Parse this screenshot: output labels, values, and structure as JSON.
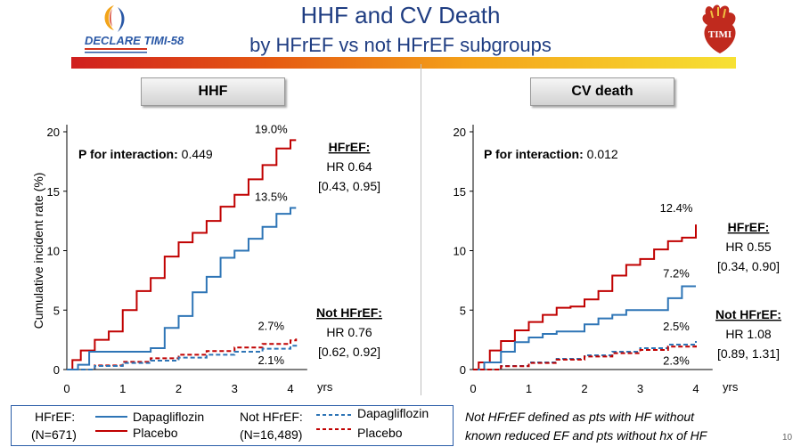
{
  "header": {
    "title_line1": "HHF and CV Death",
    "title_line2": "by HFrEF vs not HFrEF subgroups",
    "logo_left": "DECLARE TIMI-58",
    "logo_right": "TIMI"
  },
  "page_number": "10",
  "legend": {
    "group1_label": "HFrEF:",
    "group1_n": "(N=671)",
    "group2_label": "Not HFrEF:",
    "group2_n": "(N=16,489)",
    "dapa": "Dapagliflozin",
    "placebo": "Placebo"
  },
  "footnote_line1": "Not HFrEF defined as pts with HF without",
  "footnote_line2": "known reduced EF and pts without hx of  HF",
  "colors": {
    "placebo": "#c00000",
    "dapagliflozin": "#2e75b6",
    "title": "#1f3d82"
  },
  "chart_data": [
    {
      "type": "line",
      "title": "HHF",
      "ylabel": "Cumulative incident rate (%)",
      "xlabel": "yrs",
      "xlim": [
        0,
        4.3
      ],
      "ylim": [
        0,
        20
      ],
      "xticks": [
        0,
        1,
        2,
        3,
        4
      ],
      "yticks": [
        0,
        5,
        10,
        15,
        20
      ],
      "p_interaction_label": "P for interaction:",
      "p_interaction_value": "0.449",
      "hfref_label": "HFrEF:",
      "hfref_hr": "HR 0.64",
      "hfref_ci": "[0.43, 0.95]",
      "nothfref_label": "Not HFrEF:",
      "nothfref_hr": "HR 0.76",
      "nothfref_ci": "[0.62, 0.92]",
      "series": [
        {
          "group": "HFrEF",
          "arm": "placebo",
          "end_label": "19.0%",
          "x": [
            0,
            0.1,
            0.25,
            0.5,
            0.75,
            1.0,
            1.25,
            1.5,
            1.75,
            2.0,
            2.25,
            2.5,
            2.75,
            3.0,
            3.25,
            3.5,
            3.75,
            4.0,
            4.1
          ],
          "y": [
            0,
            0.8,
            1.6,
            2.5,
            3.2,
            5.0,
            6.6,
            7.7,
            9.5,
            10.7,
            11.5,
            12.5,
            13.7,
            14.7,
            16.0,
            17.2,
            18.6,
            19.3,
            19.3
          ]
        },
        {
          "group": "HFrEF",
          "arm": "dapagliflozin",
          "end_label": "13.5%",
          "x": [
            0,
            0.2,
            0.4,
            0.6,
            0.9,
            1.2,
            1.5,
            1.75,
            2.0,
            2.25,
            2.5,
            2.75,
            3.0,
            3.25,
            3.5,
            3.75,
            4.0,
            4.1
          ],
          "y": [
            0,
            0.4,
            1.5,
            1.5,
            1.5,
            1.5,
            1.8,
            3.5,
            4.5,
            6.5,
            7.8,
            9.4,
            10.0,
            11.0,
            12.0,
            13.1,
            13.6,
            13.6
          ]
        },
        {
          "group": "Not HFrEF",
          "arm": "placebo",
          "end_label": "2.7%",
          "x": [
            0,
            0.5,
            1.0,
            1.5,
            2.0,
            2.5,
            3.0,
            3.5,
            4.0,
            4.1
          ],
          "y": [
            0,
            0.35,
            0.65,
            0.95,
            1.25,
            1.55,
            1.85,
            2.15,
            2.45,
            2.6
          ]
        },
        {
          "group": "Not HFrEF",
          "arm": "dapagliflozin",
          "end_label": "2.1%",
          "x": [
            0,
            0.5,
            1.0,
            1.5,
            2.0,
            2.5,
            3.0,
            3.5,
            4.0,
            4.1
          ],
          "y": [
            0,
            0.3,
            0.55,
            0.75,
            1.0,
            1.25,
            1.5,
            1.75,
            2.0,
            2.1
          ]
        }
      ]
    },
    {
      "type": "line",
      "title": "CV death",
      "ylabel": "",
      "xlabel": "yrs",
      "xlim": [
        0,
        4.3
      ],
      "ylim": [
        0,
        20
      ],
      "xticks": [
        0,
        1,
        2,
        3,
        4
      ],
      "yticks": [
        0,
        5,
        10,
        15,
        20
      ],
      "p_interaction_label": "P for interaction:",
      "p_interaction_value": "0.012",
      "hfref_label": "HFrEF:",
      "hfref_hr": "HR 0.55",
      "hfref_ci": "[0.34, 0.90]",
      "nothfref_label": "Not HFrEF:",
      "nothfref_hr": "HR 1.08",
      "nothfref_ci": "[0.89, 1.31]",
      "series": [
        {
          "group": "HFrEF",
          "arm": "placebo",
          "end_label": "12.4%",
          "x": [
            0,
            0.1,
            0.3,
            0.5,
            0.75,
            1.0,
            1.25,
            1.5,
            1.75,
            2.0,
            2.25,
            2.5,
            2.75,
            3.0,
            3.25,
            3.5,
            3.75,
            4.0
          ],
          "y": [
            0,
            0.6,
            1.6,
            2.4,
            3.3,
            4.0,
            4.6,
            5.2,
            5.3,
            5.9,
            6.6,
            7.9,
            8.8,
            9.3,
            10.1,
            10.8,
            11.1,
            12.2
          ]
        },
        {
          "group": "HFrEF",
          "arm": "dapagliflozin",
          "end_label": "7.2%",
          "x": [
            0,
            0.2,
            0.5,
            0.75,
            1.0,
            1.25,
            1.5,
            1.75,
            2.0,
            2.25,
            2.5,
            2.75,
            3.0,
            3.25,
            3.5,
            3.75,
            4.0
          ],
          "y": [
            0,
            0.6,
            1.5,
            2.3,
            2.7,
            3.0,
            3.2,
            3.2,
            3.8,
            4.3,
            4.6,
            5.0,
            5.0,
            5.0,
            6.0,
            7.0,
            7.0
          ]
        },
        {
          "group": "Not HFrEF",
          "arm": "dapagliflozin",
          "end_label": "2.5%",
          "x": [
            0,
            0.5,
            1.0,
            1.5,
            2.0,
            2.5,
            3.0,
            3.5,
            4.0
          ],
          "y": [
            0,
            0.3,
            0.6,
            0.9,
            1.2,
            1.5,
            1.8,
            2.1,
            2.4
          ]
        },
        {
          "group": "Not HFrEF",
          "arm": "placebo",
          "end_label": "2.3%",
          "x": [
            0,
            0.5,
            1.0,
            1.5,
            2.0,
            2.5,
            3.0,
            3.5,
            4.0
          ],
          "y": [
            0,
            0.28,
            0.55,
            0.83,
            1.1,
            1.38,
            1.65,
            1.93,
            2.2
          ]
        }
      ]
    }
  ]
}
